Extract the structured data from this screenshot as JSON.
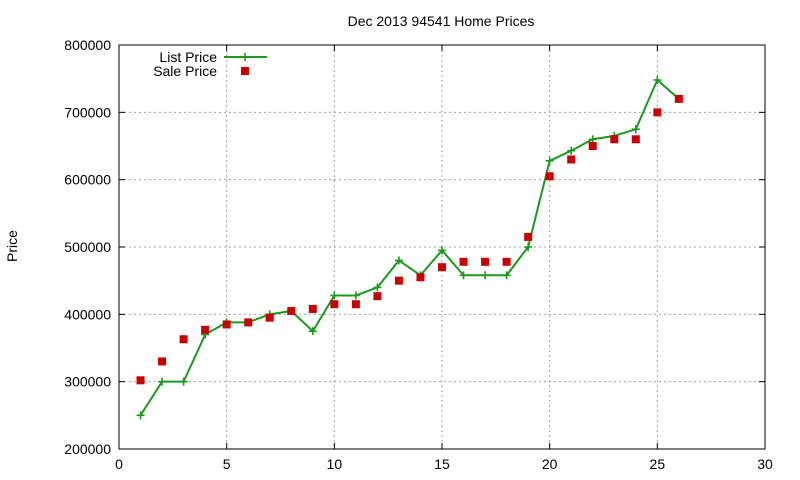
{
  "chart_data": {
    "type": "line",
    "title": "Dec 2013 94541 Home Prices",
    "xlabel": "",
    "ylabel": "Price",
    "xlim": [
      0,
      30
    ],
    "ylim": [
      200000,
      800000
    ],
    "x_ticks": [
      0,
      5,
      10,
      15,
      20,
      25,
      30
    ],
    "y_ticks": [
      200000,
      300000,
      400000,
      500000,
      600000,
      700000,
      800000
    ],
    "grid": true,
    "legend_position": "top-left",
    "series": [
      {
        "name": "List Price",
        "style": "line-with-plus-markers",
        "color": "#1a9a1a",
        "x": [
          1,
          2,
          3,
          4,
          5,
          6,
          7,
          8,
          9,
          10,
          11,
          12,
          13,
          14,
          15,
          16,
          17,
          18,
          19,
          20,
          21,
          22,
          23,
          24,
          25,
          26
        ],
        "y": [
          250000,
          300000,
          300000,
          370000,
          388000,
          388000,
          400000,
          405000,
          375000,
          428000,
          428000,
          440000,
          480000,
          458000,
          495000,
          458000,
          458000,
          458000,
          500000,
          628000,
          643000,
          660000,
          665000,
          675000,
          748000,
          720000
        ]
      },
      {
        "name": "Sale Price",
        "style": "square-markers",
        "color": "#cc0000",
        "x": [
          1,
          2,
          3,
          4,
          5,
          6,
          7,
          8,
          9,
          10,
          11,
          12,
          13,
          14,
          15,
          16,
          17,
          18,
          19,
          20,
          21,
          22,
          23,
          24,
          25,
          26
        ],
        "y": [
          302000,
          330000,
          363000,
          377000,
          385000,
          388000,
          395000,
          405000,
          408000,
          415000,
          415000,
          427000,
          450000,
          455000,
          470000,
          478000,
          478000,
          478000,
          515000,
          605000,
          630000,
          650000,
          660000,
          660000,
          700000,
          720000
        ]
      }
    ]
  }
}
